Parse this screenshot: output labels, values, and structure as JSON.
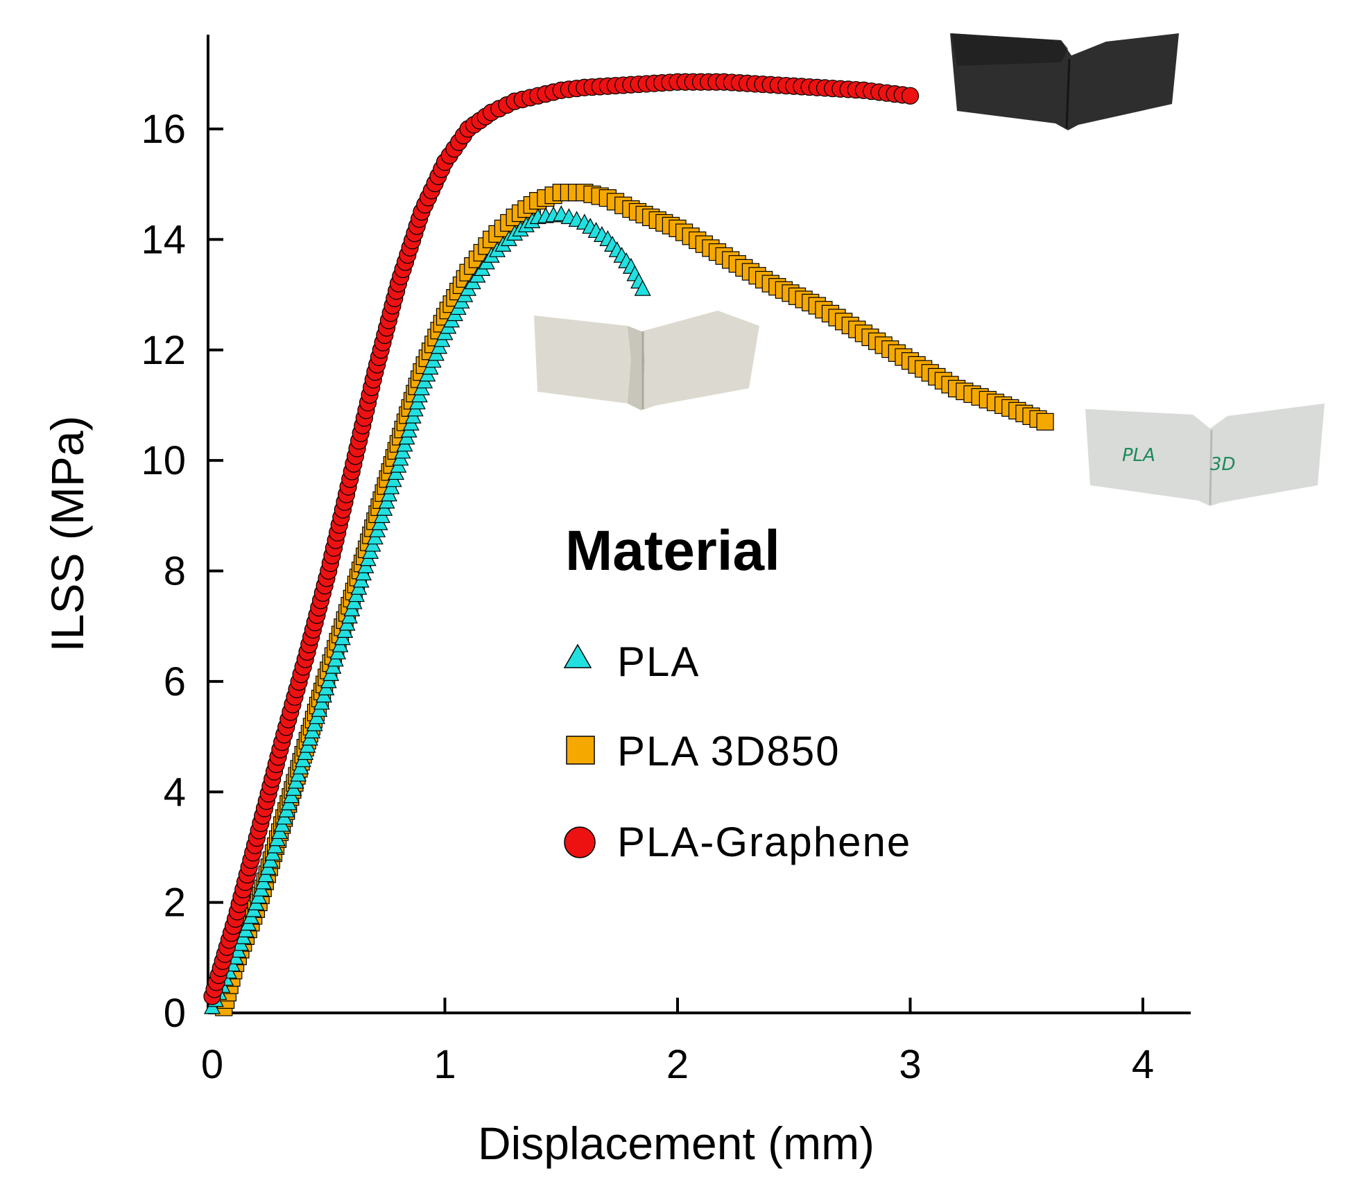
{
  "chart_data": {
    "type": "scatter",
    "title": "",
    "xlabel": "Displacement (mm)",
    "ylabel": "ILSS (MPa)",
    "xlim": [
      -0.05,
      4.2
    ],
    "ylim": [
      0,
      17.8
    ],
    "x_ticks": [
      0,
      1,
      2,
      3,
      4
    ],
    "y_ticks": [
      0,
      2,
      4,
      6,
      8,
      10,
      12,
      14,
      16
    ],
    "x_tick_labels": [
      "0",
      "1",
      "2",
      "3",
      "4"
    ],
    "y_tick_labels": [
      "0",
      "2",
      "4",
      "6",
      "8",
      "10",
      "12",
      "14",
      "16"
    ],
    "grid": false,
    "legend": {
      "title": "Material",
      "placement": "center-right"
    },
    "series": [
      {
        "name": "PLA",
        "marker": "triangle",
        "color": "#22e0e0",
        "x": [
          0.0,
          0.1,
          0.2,
          0.3,
          0.4,
          0.5,
          0.6,
          0.7,
          0.8,
          0.9,
          1.0,
          1.1,
          1.2,
          1.3,
          1.4,
          1.5,
          1.6,
          1.7,
          1.8,
          1.85
        ],
        "y": [
          0.1,
          1.0,
          2.1,
          3.4,
          4.7,
          6.0,
          7.3,
          8.6,
          9.9,
          11.3,
          12.3,
          13.1,
          13.7,
          14.1,
          14.4,
          14.45,
          14.3,
          14.0,
          13.5,
          13.1
        ]
      },
      {
        "name": "PLA 3D850",
        "marker": "square",
        "color": "#f5a800",
        "x": [
          0.05,
          0.1,
          0.2,
          0.3,
          0.4,
          0.5,
          0.6,
          0.7,
          0.8,
          0.9,
          1.0,
          1.1,
          1.2,
          1.3,
          1.4,
          1.5,
          1.6,
          1.7,
          1.8,
          2.0,
          2.2,
          2.4,
          2.6,
          2.8,
          3.0,
          3.2,
          3.4,
          3.58
        ],
        "y": [
          0.1,
          0.9,
          2.0,
          3.4,
          4.8,
          6.2,
          7.5,
          8.9,
          10.3,
          11.6,
          12.6,
          13.4,
          14.0,
          14.4,
          14.7,
          14.85,
          14.85,
          14.75,
          14.55,
          14.2,
          13.7,
          13.2,
          12.8,
          12.3,
          11.8,
          11.3,
          11.0,
          10.7
        ]
      },
      {
        "name": "PLA-Graphene",
        "marker": "circle",
        "color": "#ee1111",
        "x": [
          0.0,
          0.1,
          0.2,
          0.3,
          0.4,
          0.5,
          0.6,
          0.7,
          0.8,
          0.9,
          1.0,
          1.1,
          1.2,
          1.3,
          1.4,
          1.5,
          1.6,
          1.8,
          2.0,
          2.2,
          2.4,
          2.6,
          2.8,
          3.0
        ],
        "y": [
          0.3,
          1.7,
          3.3,
          4.9,
          6.4,
          8.0,
          9.8,
          11.6,
          13.2,
          14.5,
          15.4,
          16.0,
          16.3,
          16.5,
          16.6,
          16.7,
          16.75,
          16.8,
          16.85,
          16.85,
          16.8,
          16.75,
          16.7,
          16.6
        ]
      }
    ]
  },
  "photos": {
    "pla_graphene_photo": {
      "color": "#2b2b2b",
      "icon": "specimen-photo"
    },
    "pla_photo": {
      "color": "#d8d6cc",
      "icon": "specimen-photo"
    },
    "pla3d850_photo": {
      "color": "#d7d9d7",
      "icon": "specimen-photo",
      "text_left": "PLA",
      "text_right": "3D"
    }
  }
}
